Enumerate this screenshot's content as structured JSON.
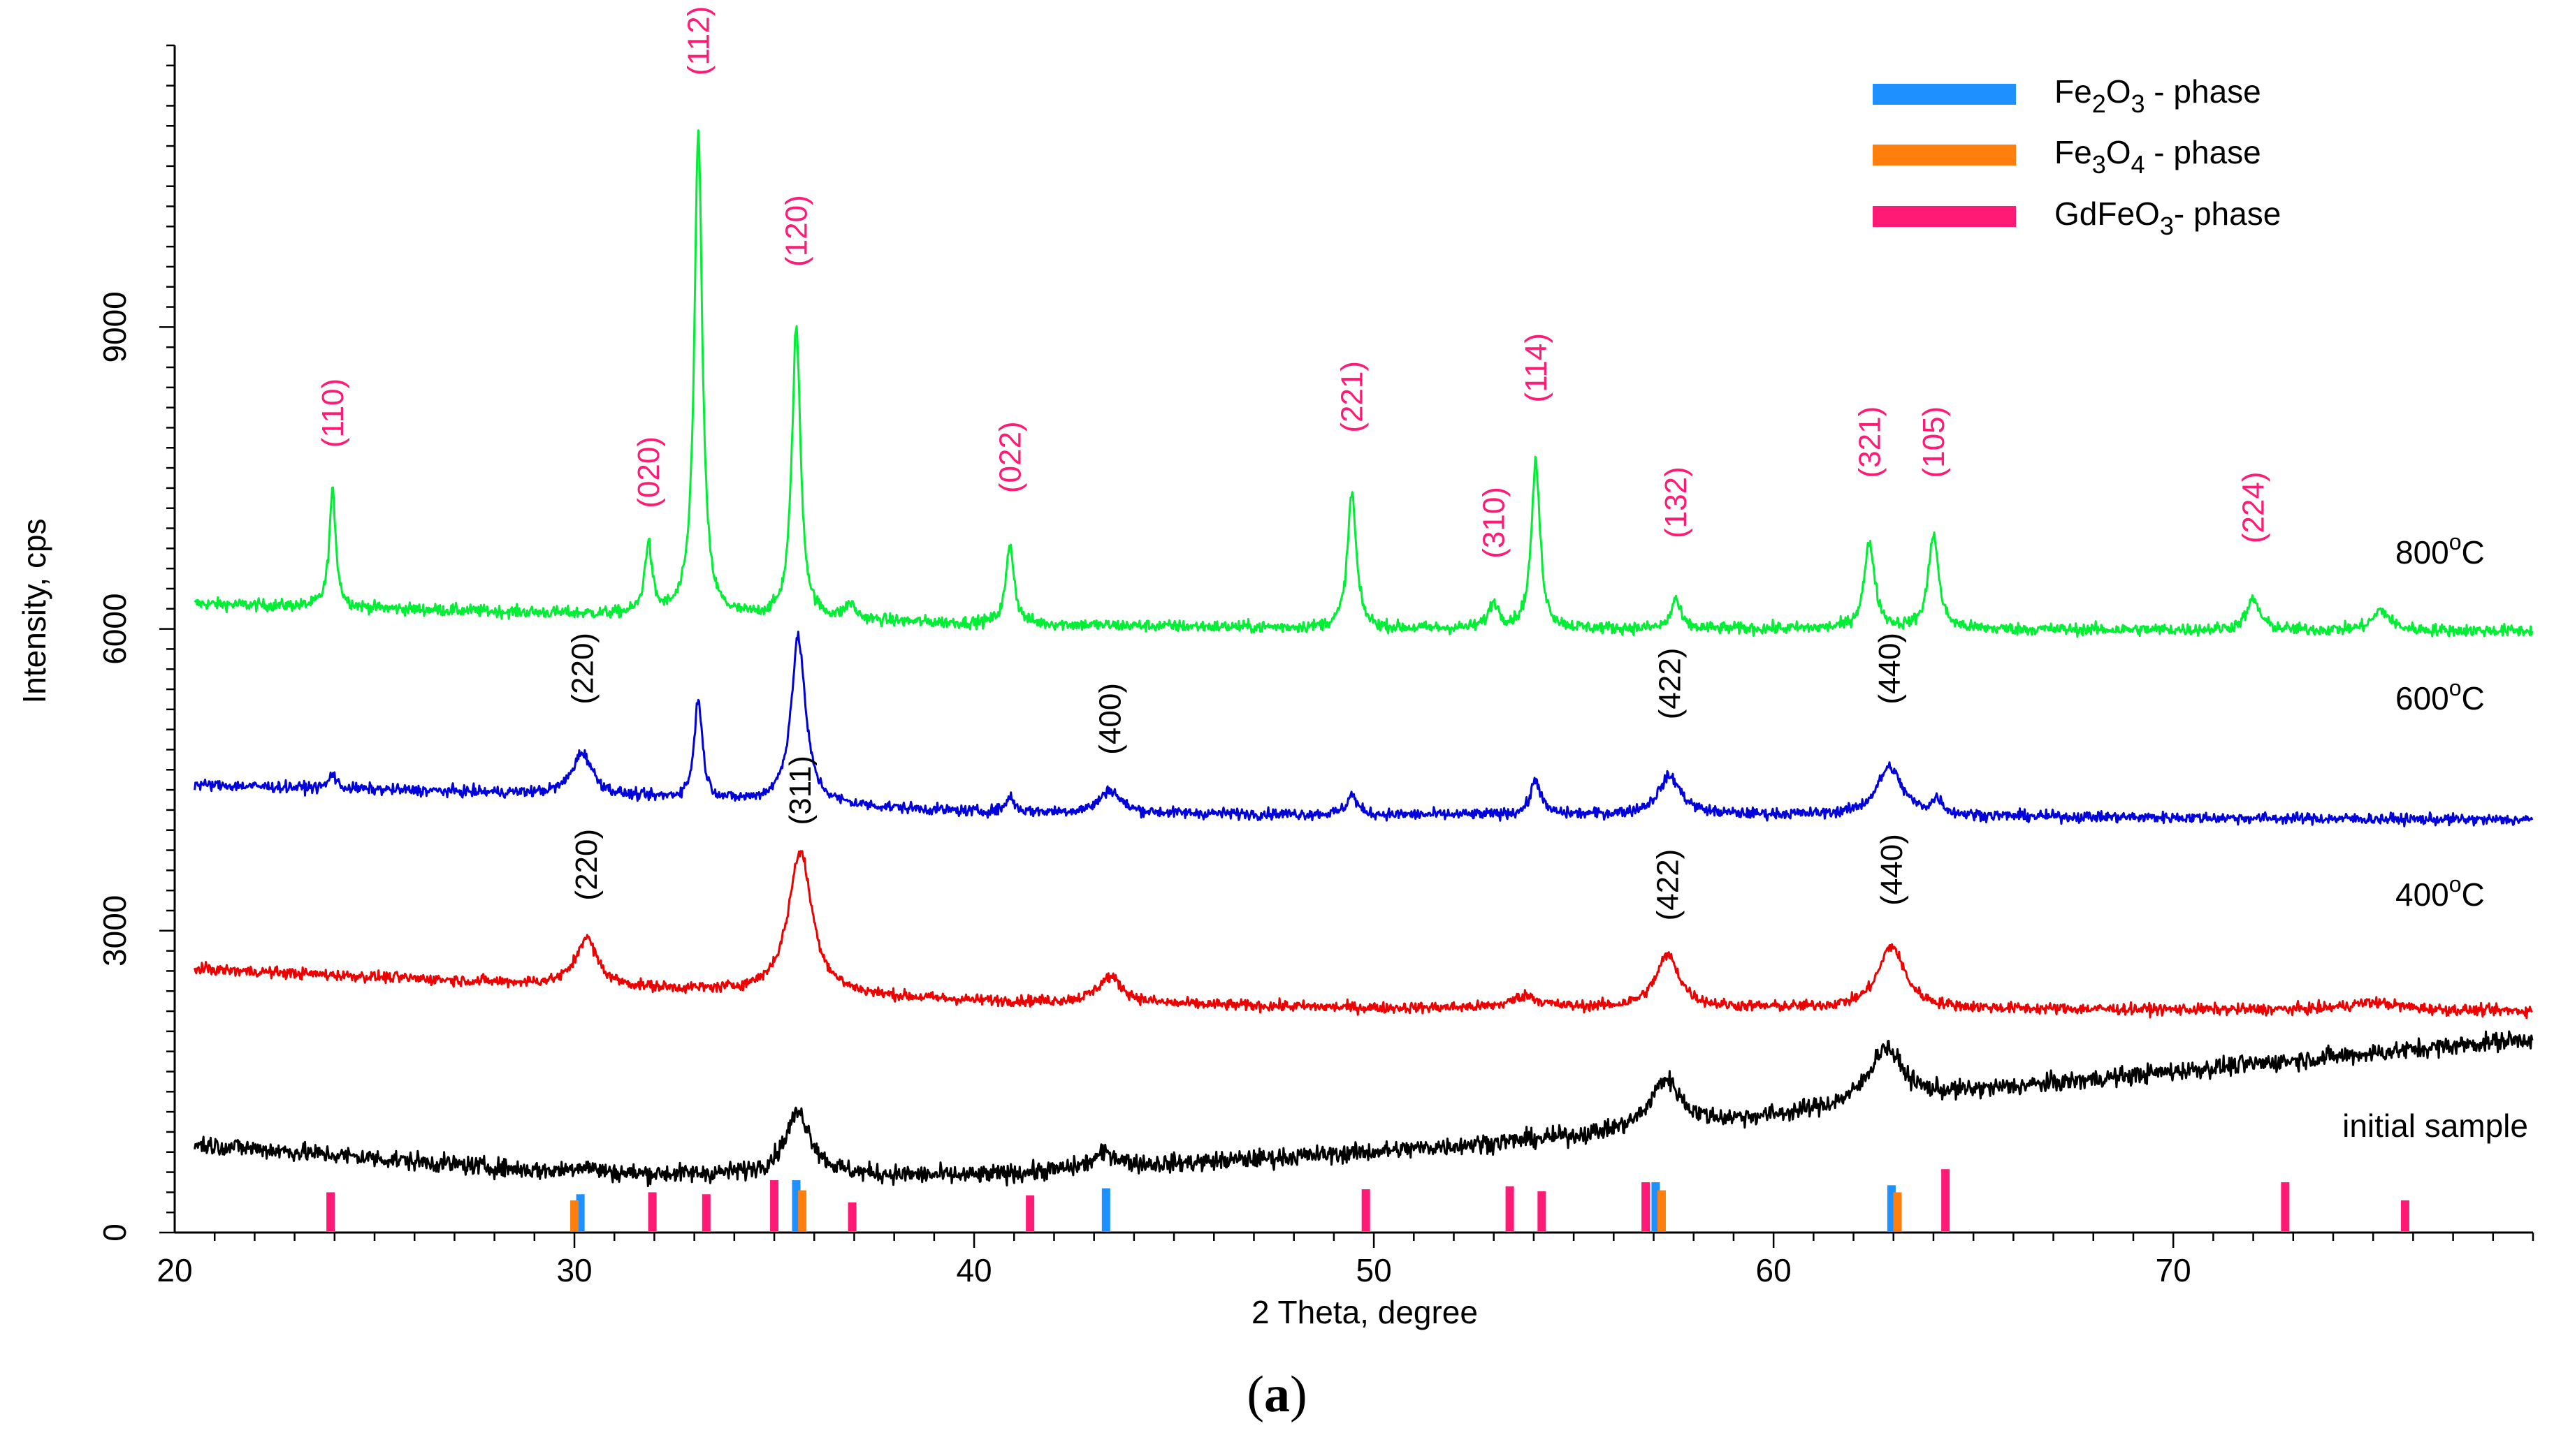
{
  "chart_data": {
    "type": "line",
    "xlabel": "2 Theta, degree",
    "ylabel": "Intensity, cps",
    "xlim": [
      20,
      79
    ],
    "ylim": [
      0,
      11800
    ],
    "x_ticks": [
      20,
      30,
      40,
      50,
      60,
      70
    ],
    "y_ticks": [
      0,
      3000,
      6000,
      9000
    ],
    "x_minor_step": 1,
    "y_minor_step": 200,
    "series": [
      {
        "name": "800°C",
        "label_base": "800",
        "label_sup": "o",
        "label_unit": "C",
        "label_y": 6650,
        "color": "#00ee33",
        "noise": 55,
        "baseline": [
          [
            20.5,
            6250
          ],
          [
            30,
            6150
          ],
          [
            40,
            6050
          ],
          [
            50,
            6000
          ],
          [
            60,
            6000
          ],
          [
            79,
            5980
          ]
        ],
        "peaks": [
          [
            23.95,
            1150,
            0.1
          ],
          [
            31.85,
            700,
            0.11
          ],
          [
            33.1,
            4800,
            0.12
          ],
          [
            35.55,
            2900,
            0.13
          ],
          [
            36.9,
            150,
            0.15
          ],
          [
            40.9,
            800,
            0.12
          ],
          [
            49.45,
            1350,
            0.13
          ],
          [
            53.0,
            250,
            0.15
          ],
          [
            54.05,
            1650,
            0.13
          ],
          [
            57.55,
            300,
            0.13
          ],
          [
            62.4,
            850,
            0.16
          ],
          [
            64.0,
            950,
            0.15
          ],
          [
            72.0,
            300,
            0.2
          ],
          [
            75.2,
            200,
            0.25
          ]
        ]
      },
      {
        "name": "600°C",
        "label_base": "600",
        "label_sup": "o",
        "label_unit": "C",
        "label_y": 5200,
        "color": "#0000dd",
        "noise": 50,
        "baseline": [
          [
            20.5,
            4450
          ],
          [
            30,
            4350
          ],
          [
            40,
            4180
          ],
          [
            50,
            4150
          ],
          [
            60,
            4150
          ],
          [
            79,
            4100
          ]
        ],
        "peaks": [
          [
            23.95,
            150,
            0.1
          ],
          [
            30.2,
            420,
            0.3
          ],
          [
            33.1,
            1000,
            0.12
          ],
          [
            35.6,
            1650,
            0.22
          ],
          [
            40.9,
            150,
            0.12
          ],
          [
            43.4,
            230,
            0.3
          ],
          [
            49.45,
            200,
            0.15
          ],
          [
            54.05,
            350,
            0.15
          ],
          [
            57.4,
            380,
            0.35
          ],
          [
            62.9,
            480,
            0.38
          ],
          [
            64.1,
            150,
            0.15
          ]
        ]
      },
      {
        "name": "400°C",
        "label_base": "400",
        "label_sup": "o",
        "label_unit": "C",
        "label_y": 3250,
        "color": "#ee0000",
        "noise": 50,
        "baseline": [
          [
            20.5,
            2620
          ],
          [
            30,
            2450
          ],
          [
            40,
            2300
          ],
          [
            50,
            2230
          ],
          [
            60,
            2230
          ],
          [
            79,
            2200
          ]
        ],
        "peaks": [
          [
            30.3,
            480,
            0.32
          ],
          [
            35.65,
            1420,
            0.36
          ],
          [
            43.4,
            260,
            0.38
          ],
          [
            53.8,
            120,
            0.4
          ],
          [
            57.35,
            520,
            0.36
          ],
          [
            62.95,
            620,
            0.4
          ],
          [
            75.0,
            80,
            0.8
          ]
        ]
      },
      {
        "name": "initial sample",
        "label_base": "initial sample",
        "label_sup": "",
        "label_unit": "",
        "label_y": 950,
        "color": "#000000",
        "noise": 85,
        "baseline": [
          [
            20.5,
            880
          ],
          [
            30,
            580
          ],
          [
            40,
            560
          ],
          [
            50,
            800
          ],
          [
            55,
            950
          ],
          [
            60,
            1150
          ],
          [
            65,
            1400
          ],
          [
            70,
            1600
          ],
          [
            79,
            1930
          ]
        ],
        "peaks": [
          [
            30.2,
            80,
            0.4
          ],
          [
            35.6,
            620,
            0.4
          ],
          [
            43.3,
            150,
            0.4
          ],
          [
            57.3,
            480,
            0.45
          ],
          [
            62.8,
            550,
            0.5
          ]
        ]
      }
    ],
    "reference_bars": [
      {
        "phase": "GdFeO3",
        "color": "#ff1a75",
        "x": [
          23.9,
          31.95,
          33.3,
          35.0,
          36.95,
          41.4,
          49.8,
          53.4,
          54.2,
          56.8,
          64.3,
          72.8,
          75.8
        ]
      },
      {
        "phase": "Fe2O3",
        "color": "#1e90ff",
        "x": [
          30.15,
          35.55,
          43.3,
          57.05,
          62.95
        ]
      },
      {
        "phase": "Fe3O4",
        "color": "#ff7f0e",
        "x": [
          30.0,
          35.7,
          57.2,
          63.1
        ]
      }
    ],
    "reference_bar_heights": {
      "GdFeO3": [
        400,
        400,
        380,
        520,
        300,
        370,
        430,
        460,
        410,
        500,
        630,
        500,
        320
      ],
      "Fe2O3": [
        380,
        520,
        440,
        500,
        470
      ],
      "Fe3O4": [
        320,
        420,
        420,
        400
      ]
    },
    "annotations_gdfeo3": [
      {
        "text": "(110)",
        "x": 23.95,
        "y": 7800
      },
      {
        "text": "(020)",
        "x": 31.85,
        "y": 7200
      },
      {
        "text": "(112)",
        "x": 33.1,
        "y": 11500
      },
      {
        "text": "(120)",
        "x": 35.55,
        "y": 9600
      },
      {
        "text": "(022)",
        "x": 40.9,
        "y": 7350
      },
      {
        "text": "(221)",
        "x": 49.45,
        "y": 7950
      },
      {
        "text": "(310)",
        "x": 53.0,
        "y": 6700
      },
      {
        "text": "(114)",
        "x": 54.05,
        "y": 8250
      },
      {
        "text": "(132)",
        "x": 57.55,
        "y": 6900
      },
      {
        "text": "(321)",
        "x": 62.4,
        "y": 7500
      },
      {
        "text": "(105)",
        "x": 64.0,
        "y": 7500
      },
      {
        "text": "(224)",
        "x": 72.0,
        "y": 6850
      }
    ],
    "annotations_spinel": [
      {
        "text": "(220)",
        "x": 30.2,
        "y": 5250
      },
      {
        "text": "(400)",
        "x": 43.4,
        "y": 4750
      },
      {
        "text": "(422)",
        "x": 57.4,
        "y": 5100
      },
      {
        "text": "(440)",
        "x": 62.9,
        "y": 5250
      },
      {
        "text": "(220)",
        "x": 30.3,
        "y": 3300
      },
      {
        "text": "(311)",
        "x": 35.65,
        "y": 4050
      },
      {
        "text": "(422)",
        "x": 57.35,
        "y": 3100
      },
      {
        "text": "(440)",
        "x": 62.95,
        "y": 3250
      }
    ],
    "legend": [
      {
        "base": "Fe",
        "sub1": "2",
        "mid": "O",
        "sub2": "3",
        "suffix": " - phase",
        "color": "#1e90ff"
      },
      {
        "base": "Fe",
        "sub1": "3",
        "mid": "O",
        "sub2": "4",
        "suffix": " - phase",
        "color": "#ff7f0e"
      },
      {
        "base": "GdFeO",
        "sub1": "",
        "mid": "",
        "sub2": "3",
        "suffix": "- phase",
        "color": "#ff1a75"
      }
    ],
    "legend_placement": "top-right",
    "annotation_colors": {
      "gdfeo3": "#ff1a75",
      "spinel": "#000000"
    }
  },
  "caption": {
    "open": "(",
    "letter": "a",
    "close": ")"
  }
}
